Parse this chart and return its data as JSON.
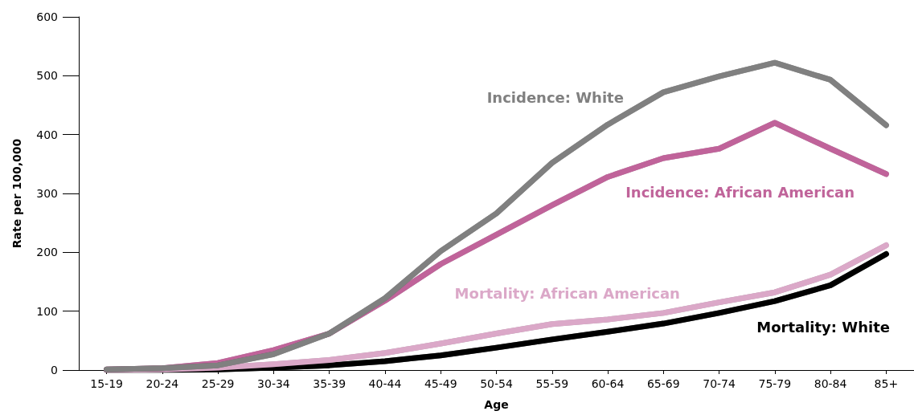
{
  "chart_data": {
    "type": "line",
    "xlabel": "Age",
    "ylabel": "Rate per 100,000",
    "categories": [
      "15-19",
      "20-24",
      "25-29",
      "30-34",
      "35-39",
      "40-44",
      "45-49",
      "50-54",
      "55-59",
      "60-64",
      "65-69",
      "70-74",
      "75-79",
      "80-84",
      "85+"
    ],
    "series": [
      {
        "name": "Incidence: White",
        "color": "#808080",
        "values": [
          1,
          3,
          8,
          27,
          62,
          122,
          202,
          266,
          352,
          417,
          472,
          499,
          522,
          493,
          416
        ]
      },
      {
        "name": "Incidence: African American",
        "color": "#c0649a",
        "values": [
          1,
          3,
          12,
          34,
          62,
          118,
          180,
          230,
          280,
          328,
          360,
          376,
          420,
          376,
          333
        ]
      },
      {
        "name": "Mortality: African American",
        "color": "#dba8c8",
        "values": [
          0,
          1,
          4,
          10,
          17,
          29,
          45,
          62,
          78,
          86,
          97,
          115,
          132,
          162,
          212
        ]
      },
      {
        "name": "Mortality: White",
        "color": "#000000",
        "values": [
          0,
          0,
          1,
          4,
          8,
          15,
          25,
          38,
          52,
          65,
          79,
          97,
          117,
          144,
          197
        ]
      }
    ],
    "ylim": [
      0,
      600
    ],
    "yticks": [
      0,
      100,
      200,
      300,
      400,
      500,
      600
    ],
    "grid": false,
    "legend": false,
    "marker": "none",
    "line_style": "solid"
  }
}
